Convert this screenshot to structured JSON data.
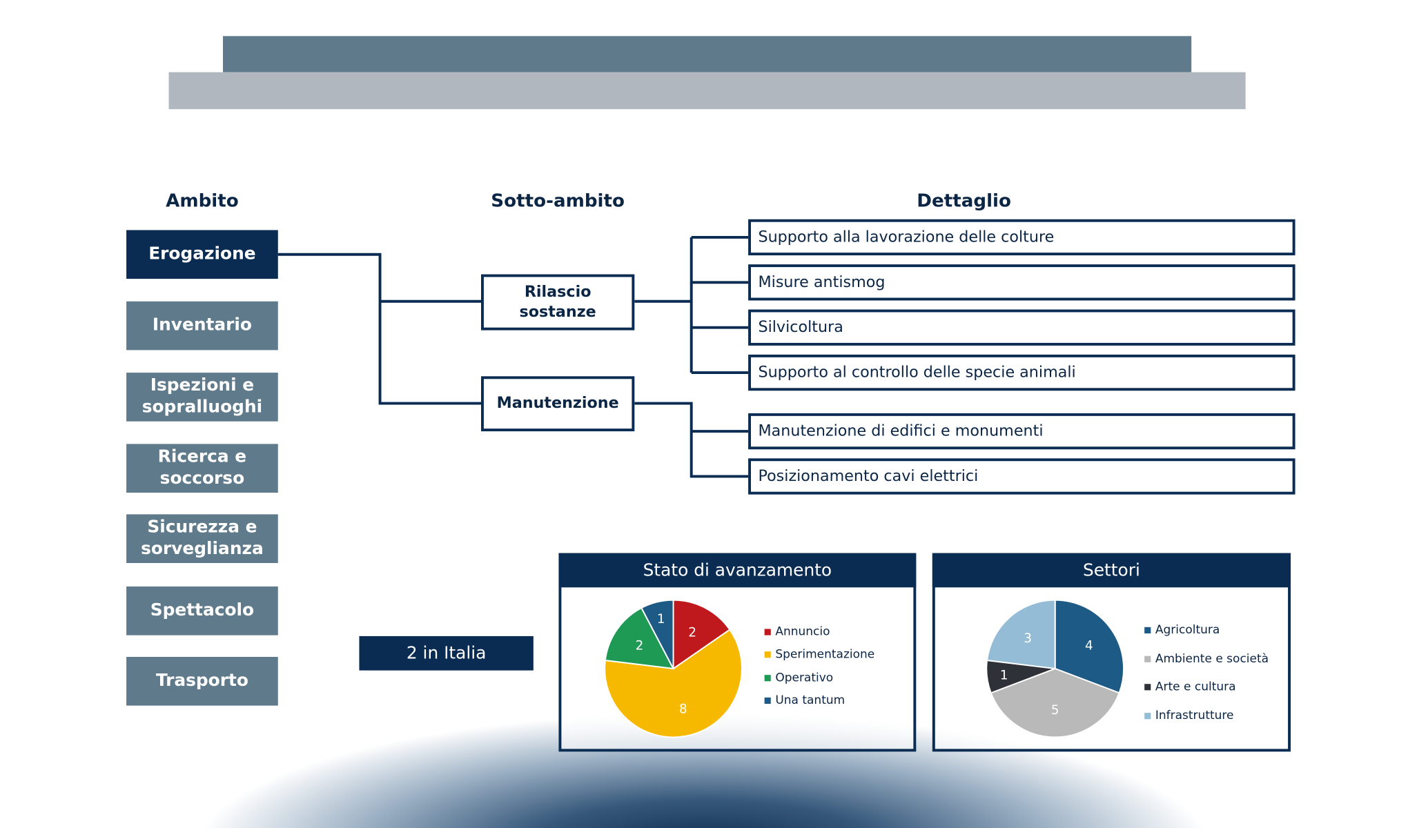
{
  "headers": {
    "ambito": "Ambito",
    "sotto_ambito": "Sotto-ambito",
    "dettaglio": "Dettaglio"
  },
  "ambiti": [
    {
      "label": "Erogazione",
      "active": true
    },
    {
      "label": "Inventario"
    },
    {
      "label": "Ispezioni e sopralluoghi"
    },
    {
      "label": "Ricerca e soccorso"
    },
    {
      "label": "Sicurezza e sorveglianza"
    },
    {
      "label": "Spettacolo"
    },
    {
      "label": "Trasporto"
    }
  ],
  "sotto_ambiti": [
    {
      "label": "Rilascio sostanze",
      "dettagli": [
        "Supporto alla lavorazione delle colture",
        "Misure antismog",
        "Silvicoltura",
        "Supporto al controllo delle specie animali"
      ]
    },
    {
      "label": "Manutenzione",
      "dettagli": [
        "Manutenzione di edifici e monumenti",
        "Posizionamento cavi elettrici"
      ]
    }
  ],
  "badge": "2 in Italia",
  "colors": {
    "navy": "#0a2b52",
    "slate": "#5f7a8b",
    "light_gray": "#b1b7be"
  },
  "chart_data": [
    {
      "type": "pie",
      "title": "Stato di avanzamento",
      "legend": "right",
      "categories": [
        "Annuncio",
        "Sperimentazione",
        "Operativo",
        "Una tantum"
      ],
      "values": [
        2,
        8,
        2,
        1
      ],
      "colors": [
        "#c0191d",
        "#f7b800",
        "#1f9a55",
        "#1d5a85"
      ]
    },
    {
      "type": "pie",
      "title": "Settori",
      "legend": "right",
      "categories": [
        "Agricoltura",
        "Ambiente e società",
        "Arte e cultura",
        "Infrastrutture"
      ],
      "values": [
        4,
        5,
        1,
        3
      ],
      "colors": [
        "#1d5a85",
        "#b9b9b9",
        "#2e3138",
        "#95bcd6"
      ]
    }
  ]
}
